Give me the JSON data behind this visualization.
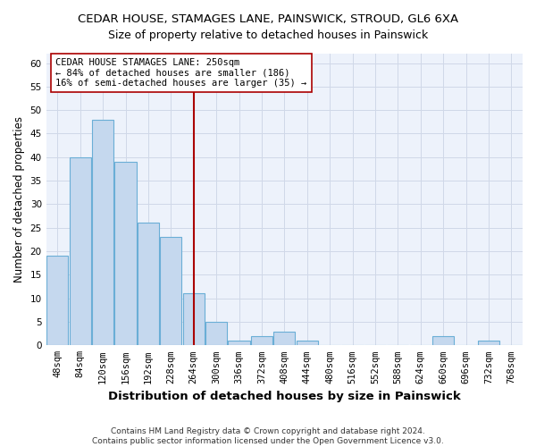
{
  "title": "CEDAR HOUSE, STAMAGES LANE, PAINSWICK, STROUD, GL6 6XA",
  "subtitle": "Size of property relative to detached houses in Painswick",
  "xlabel": "Distribution of detached houses by size in Painswick",
  "ylabel": "Number of detached properties",
  "categories": [
    "48sqm",
    "84sqm",
    "120sqm",
    "156sqm",
    "192sqm",
    "228sqm",
    "264sqm",
    "300sqm",
    "336sqm",
    "372sqm",
    "408sqm",
    "444sqm",
    "480sqm",
    "516sqm",
    "552sqm",
    "588sqm",
    "624sqm",
    "660sqm",
    "696sqm",
    "732sqm",
    "768sqm"
  ],
  "values": [
    19,
    40,
    48,
    39,
    26,
    23,
    11,
    5,
    1,
    2,
    3,
    1,
    0,
    0,
    0,
    0,
    0,
    2,
    0,
    1,
    0
  ],
  "bar_color": "#c5d8ee",
  "bar_edgecolor": "#6aaed6",
  "vline_x": 6.0,
  "vline_color": "#aa0000",
  "annotation_line1": "CEDAR HOUSE STAMAGES LANE: 250sqm",
  "annotation_line2": "← 84% of detached houses are smaller (186)",
  "annotation_line3": "16% of semi-detached houses are larger (35) →",
  "annotation_box_edgecolor": "#aa0000",
  "ylim": [
    0,
    62
  ],
  "yticks": [
    0,
    5,
    10,
    15,
    20,
    25,
    30,
    35,
    40,
    45,
    50,
    55,
    60
  ],
  "footer": "Contains HM Land Registry data © Crown copyright and database right 2024.\nContains public sector information licensed under the Open Government Licence v3.0.",
  "bg_color": "#edf2fb",
  "grid_color": "#d0d8e8",
  "title_fontsize": 9.5,
  "subtitle_fontsize": 9,
  "xlabel_fontsize": 9.5,
  "ylabel_fontsize": 8.5,
  "tick_fontsize": 7.5,
  "annotation_fontsize": 7.5,
  "footer_fontsize": 6.5
}
